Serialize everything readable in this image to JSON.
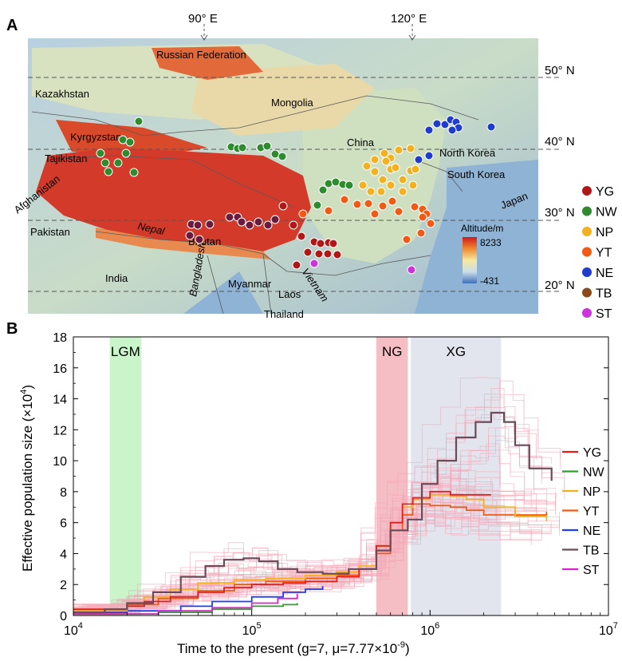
{
  "panel_a": {
    "label": "A",
    "lon_labels": [
      "90° E",
      "120° E"
    ],
    "lat_labels": [
      "50° N",
      "40° N",
      "30° N",
      "20° N"
    ],
    "countries": [
      "Russian Federation",
      "Kazakhstan",
      "Mongolia",
      "Kyrgyzstan",
      "Tajikistan",
      "China",
      "North Korea",
      "South Korea",
      "Japan",
      "Afghanistan",
      "Pakistan",
      "Nepal",
      "Bhutan",
      "India",
      "Bangladesh",
      "Myanmar",
      "Laos",
      "Vietnam",
      "Thailand"
    ],
    "colorbar": {
      "title": "Altitude/m",
      "max": "8233",
      "min": "-431"
    },
    "legend": [
      {
        "label": "YG",
        "color": "#b01818"
      },
      {
        "label": "NW",
        "color": "#2e8b2e"
      },
      {
        "label": "NP",
        "color": "#f4b11f"
      },
      {
        "label": "YT",
        "color": "#f05a14"
      },
      {
        "label": "NE",
        "color": "#1f3ccc"
      },
      {
        "label": "TB",
        "color": "#8a4a1a"
      },
      {
        "label": "ST",
        "color": "#cc33dd"
      }
    ]
  },
  "panel_b": {
    "label": "B",
    "chart_data": {
      "type": "line",
      "xscale": "log",
      "xlim": [
        10000,
        10000000
      ],
      "ylim": [
        0,
        18
      ],
      "x_ticks": [
        10000,
        100000,
        1000000,
        10000000
      ],
      "x_tick_labels": [
        [
          "10",
          "4"
        ],
        [
          "10",
          "5"
        ],
        [
          "10",
          "6"
        ],
        [
          "10",
          "7"
        ]
      ],
      "y_ticks": [
        "0",
        "2",
        "4",
        "6",
        "8",
        "10",
        "12",
        "14",
        "16",
        "18"
      ],
      "xlabel": "Time to the present (g=7, μ=7.77×10",
      "xlabel_sup": "-9",
      "xlabel_close": ")",
      "ylabel": "Effective population size (×10",
      "ylabel_sup": "4",
      "ylabel_close": ")",
      "bands": [
        {
          "label": "LGM",
          "x": [
            16000,
            24000
          ],
          "color": "#b8f0b8"
        },
        {
          "label": "NG",
          "x": [
            500000,
            750000
          ],
          "color": "#f0a8b0"
        },
        {
          "label": "XG",
          "x": [
            780000,
            2500000
          ],
          "color": "#d8dce8"
        }
      ],
      "series": [
        {
          "name": "YG",
          "color": "#e02020",
          "x": [
            10000,
            20000,
            25000,
            35000,
            50000,
            70000,
            100000,
            150000,
            200000,
            300000,
            400000,
            500000,
            600000,
            700000,
            800000,
            1000000,
            1300000,
            1600000,
            2200000
          ],
          "y": [
            0.4,
            0.6,
            0.9,
            1.2,
            1.5,
            1.8,
            2.0,
            2.1,
            2.2,
            2.5,
            3.0,
            4.5,
            6.0,
            7.2,
            7.6,
            8.0,
            7.8,
            7.8,
            7.8
          ]
        },
        {
          "name": "NW",
          "color": "#2ca02c",
          "x": [
            10000,
            30000,
            60000,
            100000,
            150000,
            180000
          ],
          "y": [
            0.1,
            0.2,
            0.4,
            0.6,
            0.7,
            0.8
          ]
        },
        {
          "name": "NP",
          "color": "#f4b11f",
          "x": [
            10000,
            20000,
            25000,
            35000,
            50000,
            80000,
            120000,
            200000,
            300000,
            400000,
            500000,
            600000,
            700000,
            800000,
            1000000,
            1300000,
            1600000,
            2000000,
            3000000,
            4500000
          ],
          "y": [
            0.3,
            0.8,
            1.2,
            1.7,
            2.1,
            2.3,
            2.4,
            2.6,
            2.8,
            3.2,
            4.5,
            6.0,
            7.0,
            7.5,
            7.8,
            7.7,
            7.5,
            7.0,
            6.4,
            6.1
          ]
        },
        {
          "name": "YT",
          "color": "#f05a14",
          "x": [
            10000,
            20000,
            30000,
            50000,
            80000,
            120000,
            200000,
            300000,
            400000,
            500000,
            600000,
            700000,
            800000,
            1000000,
            1300000,
            1600000,
            2000000,
            3000000,
            4500000
          ],
          "y": [
            0.3,
            0.7,
            1.1,
            1.6,
            2.0,
            2.2,
            2.4,
            2.6,
            3.0,
            4.0,
            5.5,
            6.5,
            7.2,
            7.1,
            7.0,
            6.8,
            6.5,
            6.5,
            6.7
          ]
        },
        {
          "name": "NE",
          "color": "#1a3cff",
          "x": [
            10000,
            20000,
            40000,
            60000,
            100000,
            150000,
            200000,
            250000
          ],
          "y": [
            0.2,
            0.3,
            0.6,
            0.9,
            1.2,
            1.5,
            1.7,
            1.9
          ]
        },
        {
          "name": "TB",
          "color": "#6b4a5a",
          "x": [
            10000,
            15000,
            20000,
            28000,
            40000,
            55000,
            70000,
            90000,
            110000,
            140000,
            180000,
            250000,
            350000,
            500000,
            600000,
            750000,
            900000,
            1100000,
            1400000,
            1800000,
            2200000,
            2600000,
            3000000,
            3600000,
            4800000
          ],
          "y": [
            0.2,
            0.4,
            0.8,
            1.5,
            2.5,
            3.2,
            3.6,
            3.7,
            3.5,
            3.0,
            2.8,
            2.7,
            3.0,
            4.2,
            5.5,
            6.2,
            8.5,
            10.0,
            11.5,
            12.5,
            13.1,
            12.5,
            11.0,
            9.5,
            8.7
          ]
        },
        {
          "name": "ST",
          "color": "#dd22cc",
          "x": [
            10000,
            30000,
            60000,
            100000,
            140000,
            180000
          ],
          "y": [
            0.1,
            0.3,
            0.5,
            0.8,
            1.1,
            1.4
          ]
        }
      ]
    }
  }
}
